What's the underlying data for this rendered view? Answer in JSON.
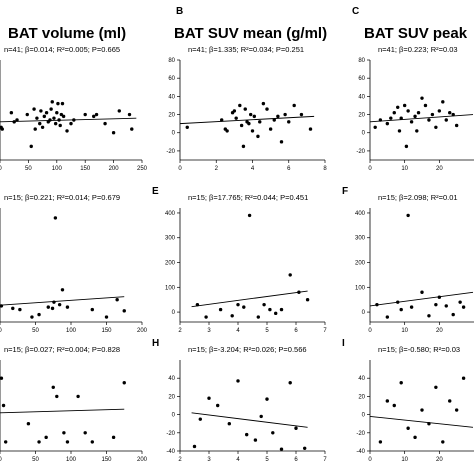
{
  "column_titles": [
    "BAT volume (ml)",
    "BAT SUV mean (g/ml)",
    "BAT SUV peak"
  ],
  "chart_data": [
    {
      "type": "scatter",
      "panel": "A-row1",
      "letter": "",
      "column": 0,
      "row": 0,
      "stats": "n=41; β=0.014; R²=0.005; P=0.665",
      "xlim": [
        0,
        250
      ],
      "ylim": [
        -30,
        80
      ],
      "xticks": [
        "0",
        "50",
        "100",
        "150",
        "200",
        "250"
      ],
      "yticks": [],
      "points": [
        [
          2,
          6
        ],
        [
          4,
          4
        ],
        [
          20,
          22
        ],
        [
          25,
          12
        ],
        [
          30,
          14
        ],
        [
          48,
          20
        ],
        [
          55,
          -15
        ],
        [
          60,
          26
        ],
        [
          62,
          4
        ],
        [
          65,
          16
        ],
        [
          70,
          10
        ],
        [
          72,
          24
        ],
        [
          75,
          6
        ],
        [
          78,
          18
        ],
        [
          82,
          22
        ],
        [
          85,
          12
        ],
        [
          88,
          14
        ],
        [
          90,
          26
        ],
        [
          92,
          34
        ],
        [
          95,
          16
        ],
        [
          98,
          10
        ],
        [
          100,
          22
        ],
        [
          102,
          32
        ],
        [
          104,
          14
        ],
        [
          106,
          8
        ],
        [
          108,
          20
        ],
        [
          110,
          32
        ],
        [
          112,
          18
        ],
        [
          118,
          2
        ],
        [
          125,
          10
        ],
        [
          130,
          14
        ],
        [
          150,
          20
        ],
        [
          165,
          18
        ],
        [
          170,
          20
        ],
        [
          185,
          10
        ],
        [
          200,
          0
        ],
        [
          210,
          24
        ],
        [
          228,
          20
        ],
        [
          232,
          4
        ]
      ],
      "fit": [
        [
          0,
          12
        ],
        [
          240,
          16
        ]
      ]
    },
    {
      "type": "scatter",
      "panel": "B",
      "letter": "B",
      "column": 1,
      "row": 0,
      "stats": "n=41; β=1.335; R²=0.034; P=0.251",
      "xlim": [
        0,
        8
      ],
      "ylim": [
        -30,
        80
      ],
      "xticks": [
        "0",
        "2",
        "4",
        "6",
        "8"
      ],
      "yticks": [
        "80",
        "60",
        "40",
        "20",
        "0",
        "-20"
      ],
      "points": [
        [
          0.4,
          6
        ],
        [
          2.3,
          14
        ],
        [
          2.5,
          4
        ],
        [
          2.6,
          2
        ],
        [
          2.9,
          22
        ],
        [
          3.0,
          24
        ],
        [
          3.1,
          16
        ],
        [
          3.3,
          30
        ],
        [
          3.4,
          8
        ],
        [
          3.5,
          -15
        ],
        [
          3.6,
          26
        ],
        [
          3.7,
          12
        ],
        [
          3.8,
          10
        ],
        [
          3.9,
          20
        ],
        [
          4.0,
          2
        ],
        [
          4.1,
          18
        ],
        [
          4.3,
          -4
        ],
        [
          4.4,
          12
        ],
        [
          4.6,
          32
        ],
        [
          4.8,
          26
        ],
        [
          5.0,
          4
        ],
        [
          5.2,
          14
        ],
        [
          5.4,
          18
        ],
        [
          5.6,
          -10
        ],
        [
          5.8,
          20
        ],
        [
          6.0,
          12
        ],
        [
          6.3,
          30
        ],
        [
          6.7,
          20
        ],
        [
          7.2,
          4
        ]
      ],
      "fit": [
        [
          0,
          10
        ],
        [
          7.4,
          18
        ]
      ]
    },
    {
      "type": "scatter",
      "panel": "C",
      "letter": "C",
      "column": 2,
      "row": 0,
      "stats": "n=41; β=0.223; R²=0.03",
      "xlim": [
        0,
        30
      ],
      "ylim": [
        -30,
        80
      ],
      "xticks": [
        "0",
        "10",
        "20"
      ],
      "yticks": [
        "80",
        "60",
        "40",
        "20",
        "0",
        "-20"
      ],
      "points": [
        [
          1.5,
          6
        ],
        [
          3,
          14
        ],
        [
          5,
          10
        ],
        [
          6,
          16
        ],
        [
          7,
          22
        ],
        [
          8,
          28
        ],
        [
          8.5,
          2
        ],
        [
          9,
          16
        ],
        [
          10,
          30
        ],
        [
          10.5,
          -15
        ],
        [
          11,
          24
        ],
        [
          12,
          12
        ],
        [
          13,
          18
        ],
        [
          13.5,
          2
        ],
        [
          14,
          22
        ],
        [
          15,
          38
        ],
        [
          16,
          30
        ],
        [
          17,
          14
        ],
        [
          18,
          20
        ],
        [
          19,
          6
        ],
        [
          20,
          24
        ],
        [
          21,
          34
        ],
        [
          22,
          14
        ],
        [
          23,
          22
        ],
        [
          24,
          20
        ],
        [
          25,
          8
        ]
      ],
      "fit": [
        [
          0,
          12
        ],
        [
          30,
          20
        ]
      ]
    },
    {
      "type": "scatter",
      "panel": "D",
      "letter": "",
      "column": 0,
      "row": 1,
      "stats": "n=15; β=0.221; R²=0.014; P=0.679",
      "xlim": [
        0,
        200
      ],
      "ylim": [
        -40,
        420
      ],
      "xticks": [
        "0",
        "50",
        "100",
        "150",
        "200"
      ],
      "yticks": [],
      "points": [
        [
          2,
          25
        ],
        [
          18,
          15
        ],
        [
          28,
          10
        ],
        [
          45,
          -20
        ],
        [
          55,
          -10
        ],
        [
          68,
          20
        ],
        [
          74,
          15
        ],
        [
          76,
          40
        ],
        [
          78,
          380
        ],
        [
          84,
          30
        ],
        [
          88,
          90
        ],
        [
          95,
          20
        ],
        [
          130,
          10
        ],
        [
          150,
          -20
        ],
        [
          165,
          50
        ],
        [
          175,
          5
        ]
      ],
      "fit": [
        [
          0,
          28
        ],
        [
          175,
          62
        ]
      ]
    },
    {
      "type": "scatter",
      "panel": "E",
      "letter": "E",
      "column": 1,
      "row": 1,
      "stats": "n=15; β=17.765; R²=0.044; P=0.451",
      "xlim": [
        2,
        7
      ],
      "ylim": [
        -40,
        420
      ],
      "xticks": [
        "2",
        "3",
        "4",
        "5",
        "6",
        "7"
      ],
      "yticks": [
        "400",
        "300",
        "200",
        "100",
        "0"
      ],
      "points": [
        [
          2.6,
          30
        ],
        [
          2.9,
          -20
        ],
        [
          3.4,
          10
        ],
        [
          3.8,
          -15
        ],
        [
          4.0,
          30
        ],
        [
          4.2,
          20
        ],
        [
          4.4,
          390
        ],
        [
          4.7,
          -20
        ],
        [
          4.9,
          30
        ],
        [
          5.1,
          10
        ],
        [
          5.3,
          -5
        ],
        [
          5.5,
          10
        ],
        [
          5.8,
          150
        ],
        [
          6.1,
          80
        ],
        [
          6.4,
          50
        ]
      ],
      "fit": [
        [
          2.4,
          22
        ],
        [
          6.4,
          85
        ]
      ]
    },
    {
      "type": "scatter",
      "panel": "F",
      "letter": "F",
      "column": 2,
      "row": 1,
      "stats": "n=15; β=2.098; R²=0.01",
      "xlim": [
        0,
        30
      ],
      "ylim": [
        -40,
        420
      ],
      "xticks": [
        "0",
        "10",
        "20"
      ],
      "yticks": [
        "400",
        "300",
        "200",
        "100",
        "0"
      ],
      "points": [
        [
          2,
          30
        ],
        [
          5,
          -20
        ],
        [
          8,
          40
        ],
        [
          9,
          10
        ],
        [
          11,
          390
        ],
        [
          12,
          20
        ],
        [
          15,
          80
        ],
        [
          17,
          -15
        ],
        [
          19,
          30
        ],
        [
          20,
          60
        ],
        [
          22,
          25
        ],
        [
          24,
          -10
        ],
        [
          26,
          40
        ],
        [
          27,
          20
        ]
      ],
      "fit": [
        [
          0,
          25
        ],
        [
          30,
          80
        ]
      ]
    },
    {
      "type": "scatter",
      "panel": "G",
      "letter": "",
      "column": 0,
      "row": 2,
      "stats": "n=15; β=0.027; R²=0.004; P=0.828",
      "xlim": [
        0,
        200
      ],
      "ylim": [
        -40,
        60
      ],
      "xticks": [
        "0",
        "50",
        "100",
        "150",
        "200"
      ],
      "yticks": [],
      "points": [
        [
          2,
          40
        ],
        [
          5,
          10
        ],
        [
          8,
          -30
        ],
        [
          40,
          -10
        ],
        [
          55,
          -30
        ],
        [
          65,
          -25
        ],
        [
          75,
          30
        ],
        [
          80,
          20
        ],
        [
          90,
          -20
        ],
        [
          95,
          -30
        ],
        [
          110,
          20
        ],
        [
          120,
          -20
        ],
        [
          130,
          -30
        ],
        [
          160,
          -25
        ],
        [
          175,
          35
        ]
      ],
      "fit": [
        [
          0,
          2
        ],
        [
          175,
          6
        ]
      ]
    },
    {
      "type": "scatter",
      "panel": "H",
      "letter": "H",
      "column": 1,
      "row": 2,
      "stats": "n=15; β=-3.204; R²=0.026; P=0.566",
      "xlim": [
        2,
        7
      ],
      "ylim": [
        -40,
        60
      ],
      "xticks": [
        "2",
        "3",
        "4",
        "5",
        "6",
        "7"
      ],
      "yticks": [
        "40",
        "20",
        "0",
        "-20",
        "-40"
      ],
      "points": [
        [
          2.5,
          -35
        ],
        [
          2.7,
          -5
        ],
        [
          3.0,
          18
        ],
        [
          3.3,
          10
        ],
        [
          3.7,
          -10
        ],
        [
          4.0,
          37
        ],
        [
          4.3,
          -22
        ],
        [
          4.6,
          -28
        ],
        [
          4.8,
          -2
        ],
        [
          5.0,
          17
        ],
        [
          5.2,
          -20
        ],
        [
          5.5,
          -38
        ],
        [
          5.8,
          35
        ],
        [
          6.0,
          -15
        ],
        [
          6.3,
          -37
        ]
      ],
      "fit": [
        [
          2.4,
          2
        ],
        [
          6.4,
          -14
        ]
      ]
    },
    {
      "type": "scatter",
      "panel": "I",
      "letter": "I",
      "column": 2,
      "row": 2,
      "stats": "n=15; β=-0.580; R²=0.03",
      "xlim": [
        0,
        30
      ],
      "ylim": [
        -40,
        60
      ],
      "xticks": [
        "0",
        "10",
        "20"
      ],
      "yticks": [
        "40",
        "20",
        "0",
        "-20",
        "-40"
      ],
      "points": [
        [
          3,
          -30
        ],
        [
          5,
          15
        ],
        [
          7,
          10
        ],
        [
          9,
          35
        ],
        [
          11,
          -15
        ],
        [
          13,
          -25
        ],
        [
          15,
          5
        ],
        [
          17,
          -10
        ],
        [
          19,
          30
        ],
        [
          21,
          -30
        ],
        [
          23,
          15
        ],
        [
          25,
          5
        ],
        [
          27,
          40
        ]
      ],
      "fit": [
        [
          0,
          -2
        ],
        [
          30,
          -14
        ]
      ]
    }
  ]
}
